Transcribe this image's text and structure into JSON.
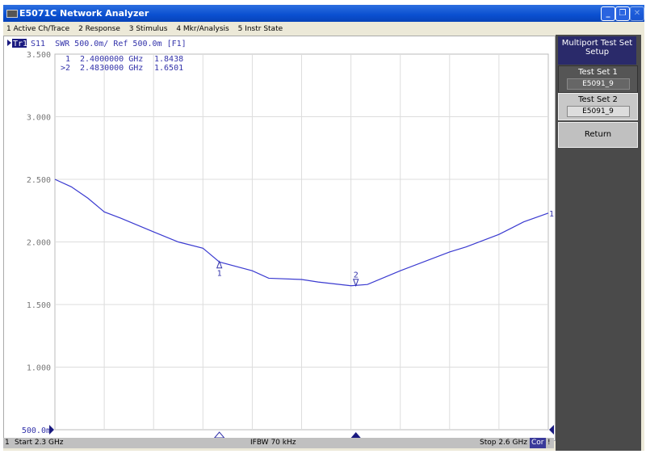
{
  "window": {
    "title": "E5071C Network Analyzer"
  },
  "menu": [
    "1 Active Ch/Trace",
    "2 Response",
    "3 Stimulus",
    "4 Mkr/Analysis",
    "5 Instr State"
  ],
  "trace_header": {
    "trace": "Tr1",
    "text": "S11  SWR 500.0m/ Ref 500.0m [F1]"
  },
  "markers": [
    {
      "label": " 1",
      "freq": "2.4000000 GHz",
      "value": "1.8438",
      "freq_ghz": 2.4,
      "swr": 1.8438
    },
    {
      "label": ">2",
      "freq": "2.4830000 GHz",
      "value": "1.6501",
      "freq_ghz": 2.483,
      "swr": 1.6501
    }
  ],
  "status": {
    "channel": "1",
    "start": "Start 2.3 GHz",
    "ifbw": "IFBW 70 kHz",
    "stop": "Stop 2.6 GHz",
    "cor": "Cor",
    "flag": "!"
  },
  "softkeys": {
    "title": "Multiport Test Set Setup",
    "test_set_1": "Test Set 1",
    "test_set_1_value": "E5091_9",
    "test_set_2": "Test Set 2",
    "test_set_2_value": "E5091_9",
    "return": "Return"
  },
  "colors": {
    "trace": "#3a3ad0",
    "accent": "#1a1a80"
  },
  "chart_data": {
    "type": "line",
    "xlim": [
      2.3,
      2.6
    ],
    "ylim": [
      0.5,
      3.5
    ],
    "y_ticks": [
      "500.0m",
      "1.000",
      "1.500",
      "2.000",
      "2.500",
      "3.000",
      "3.500"
    ],
    "grid": true,
    "series": [
      {
        "x": [
          2.3,
          2.31,
          2.32,
          2.33,
          2.34,
          2.36,
          2.375,
          2.39,
          2.4,
          2.42,
          2.43,
          2.45,
          2.46,
          2.48,
          2.49,
          2.51,
          2.54,
          2.55,
          2.57,
          2.585,
          2.6
        ],
        "y": [
          2.5,
          2.44,
          2.35,
          2.24,
          2.19,
          2.08,
          2.0,
          1.95,
          1.84,
          1.77,
          1.71,
          1.7,
          1.68,
          1.65,
          1.66,
          1.77,
          1.92,
          1.96,
          2.06,
          2.16,
          2.23
        ]
      }
    ]
  }
}
